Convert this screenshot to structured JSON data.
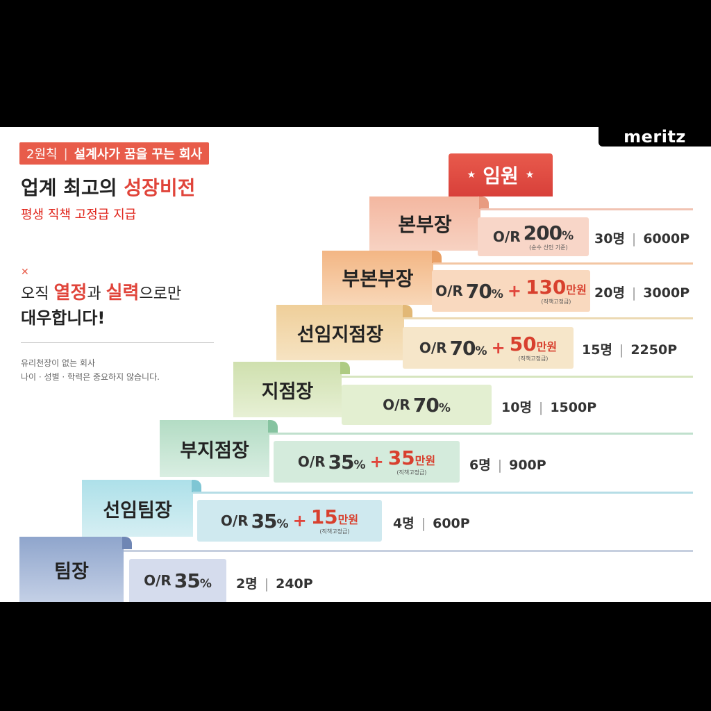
{
  "brand": {
    "logo": "meritz"
  },
  "intro": {
    "tag_label": "2원칙",
    "tag_divider": "|",
    "tag_text": "설계사가 꿈을 꾸는 회사",
    "headline_prefix": "업계 최고의 ",
    "headline_accent": "성장비전",
    "subhead": "평생 직책 고정급 지급",
    "quote_icon": "quote-icon",
    "slogan_pre": "오직 ",
    "slogan_hl1": "열정",
    "slogan_mid": "과 ",
    "slogan_hl2": "실력",
    "slogan_post": "으로만",
    "slogan_line2": "대우합니다!",
    "note_line1": "유리천장이 없는 회사",
    "note_line2": "나이 · 성별 · 학력은 중요하지 않습니다."
  },
  "ladder": {
    "top": {
      "label": "임원",
      "star_left": "★",
      "star_right": "★"
    },
    "steps": [
      {
        "key": "bonbujang",
        "title": "본부장",
        "or_label": "O/R",
        "pct": "200",
        "pct_sign": "%",
        "pct_sub": "(순수 신인 기준)",
        "plus": "",
        "bonus_amount": "",
        "bonus_unit": "",
        "bonus_sub": "",
        "headcount": "30명",
        "sep": "|",
        "points": "6000P"
      },
      {
        "key": "bubonbujang",
        "title": "부본부장",
        "or_label": "O/R",
        "pct": "70",
        "pct_sign": "%",
        "pct_sub": "",
        "plus": "+",
        "bonus_amount": "130",
        "bonus_unit": "만원",
        "bonus_sub": "(직책고정급)",
        "headcount": "20명",
        "sep": "|",
        "points": "3000P"
      },
      {
        "key": "seonimjijeomjang",
        "title": "선임지점장",
        "or_label": "O/R",
        "pct": "70",
        "pct_sign": "%",
        "pct_sub": "",
        "plus": "+",
        "bonus_amount": "50",
        "bonus_unit": "만원",
        "bonus_sub": "(직책고정급)",
        "headcount": "15명",
        "sep": "|",
        "points": "2250P"
      },
      {
        "key": "jijeomjang",
        "title": "지점장",
        "or_label": "O/R",
        "pct": "70",
        "pct_sign": "%",
        "pct_sub": "",
        "plus": "",
        "bonus_amount": "",
        "bonus_unit": "",
        "bonus_sub": "",
        "headcount": "10명",
        "sep": "|",
        "points": "1500P"
      },
      {
        "key": "bujijeomjang",
        "title": "부지점장",
        "or_label": "O/R",
        "pct": "35",
        "pct_sign": "%",
        "pct_sub": "",
        "plus": "+",
        "bonus_amount": "35",
        "bonus_unit": "만원",
        "bonus_sub": "(직책고정급)",
        "headcount": "6명",
        "sep": "|",
        "points": "900P"
      },
      {
        "key": "seonimtimjang",
        "title": "선임팀장",
        "or_label": "O/R",
        "pct": "35",
        "pct_sign": "%",
        "pct_sub": "",
        "plus": "+",
        "bonus_amount": "15",
        "bonus_unit": "만원",
        "bonus_sub": "(직책고정급)",
        "headcount": "4명",
        "sep": "|",
        "points": "600P"
      },
      {
        "key": "timjang",
        "title": "팀장",
        "or_label": "O/R",
        "pct": "35",
        "pct_sign": "%",
        "pct_sub": "",
        "plus": "",
        "bonus_amount": "",
        "bonus_unit": "",
        "bonus_sub": "",
        "headcount": "2명",
        "sep": "|",
        "points": "240P"
      }
    ]
  },
  "colors": {
    "accent_red": "#e0443a",
    "top_tab": "#e14a45",
    "bonbujang_tab": "#f0a78e",
    "bubonbujang_tab": "#f1b07c",
    "seonimjijeomjang_tab": "#ecc98f",
    "jijeomjang_tab": "#c9d9a6",
    "bujijeomjang_tab": "#a9d6bd",
    "seonimtimjang_tab": "#a7d6df",
    "timjang_tab": "#8ea3c9"
  }
}
